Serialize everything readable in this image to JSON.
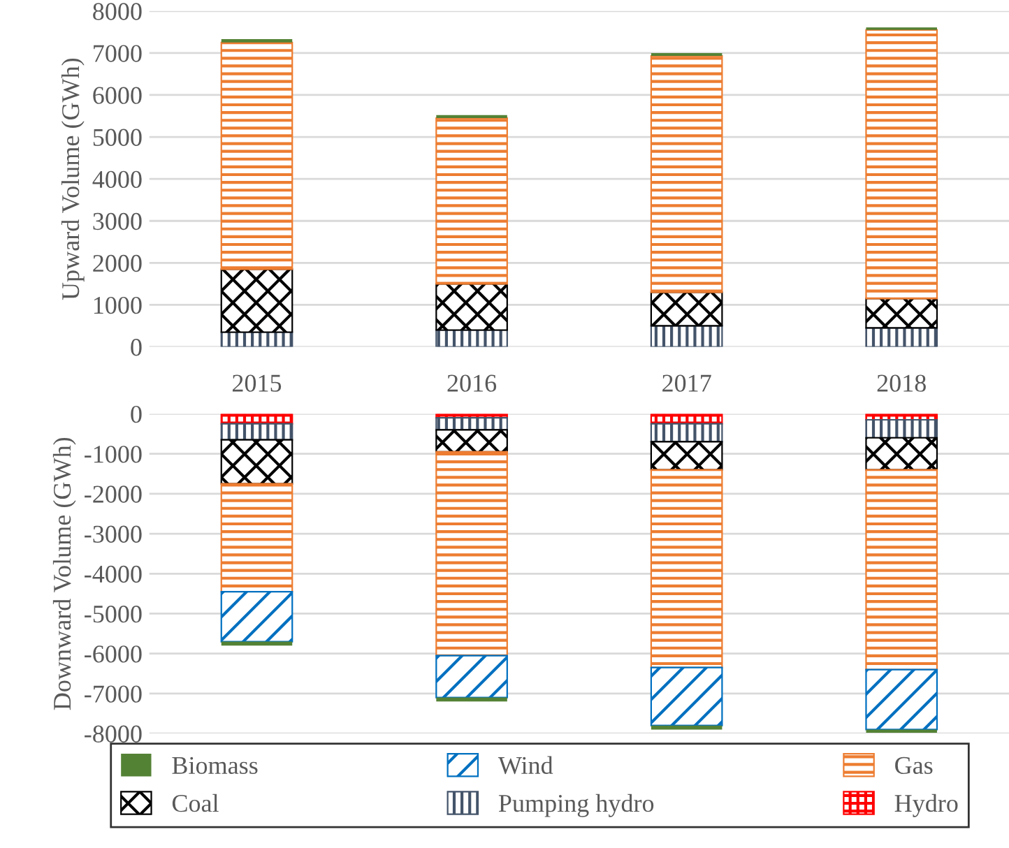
{
  "chart_data": [
    {
      "type": "bar",
      "stacked": true,
      "ylabel": "Upward Volume (GWh)",
      "categories": [
        "2015",
        "2016",
        "2017",
        "2018"
      ],
      "ylim": [
        0,
        8000
      ],
      "yticks": [
        0,
        1000,
        2000,
        3000,
        4000,
        5000,
        6000,
        7000,
        8000
      ],
      "grid": "y",
      "series": [
        {
          "color": "#44546a",
          "values": [
            350,
            400,
            500,
            450
          ]
        },
        {
          "color": "#000000",
          "values": [
            1500,
            1100,
            800,
            700
          ]
        },
        {
          "color": "#ed7d31",
          "values": [
            5400,
            3950,
            5630,
            6400
          ]
        },
        {
          "color": "#548235",
          "values": [
            80,
            70,
            70,
            60
          ]
        }
      ]
    },
    {
      "type": "bar",
      "stacked": true,
      "ylabel": "Downward Volume (GWh)",
      "categories": [
        "2015",
        "2016",
        "2017",
        "2018"
      ],
      "tick_labels": "y",
      "ylim": [
        -8000,
        0
      ],
      "yticks": [
        0,
        -1000,
        -2000,
        -3000,
        -4000,
        -5000,
        -6000,
        -7000,
        -8000
      ],
      "grid": "y",
      "legend": "bottom",
      "series": [
        {
          "name": "Hydro",
          "color": "#ff0000",
          "values": [
            -250,
            -100,
            -250,
            -150
          ]
        },
        {
          "name": "Pumping hydro",
          "color": "#44546a",
          "values": [
            -400,
            -300,
            -450,
            -450
          ]
        },
        {
          "name": "Coal",
          "color": "#000000",
          "values": [
            -1100,
            -550,
            -700,
            -800
          ]
        },
        {
          "name": "Gas",
          "color": "#ed7d31",
          "values": [
            -2700,
            -5100,
            -4950,
            -5000
          ]
        },
        {
          "name": "Wind",
          "color": "#0070c0",
          "values": [
            -1250,
            -1050,
            -1450,
            -1500
          ]
        },
        {
          "name": "Biomass",
          "color": "#548235",
          "values": [
            -100,
            -100,
            -100,
            -80
          ]
        }
      ]
    }
  ]
}
